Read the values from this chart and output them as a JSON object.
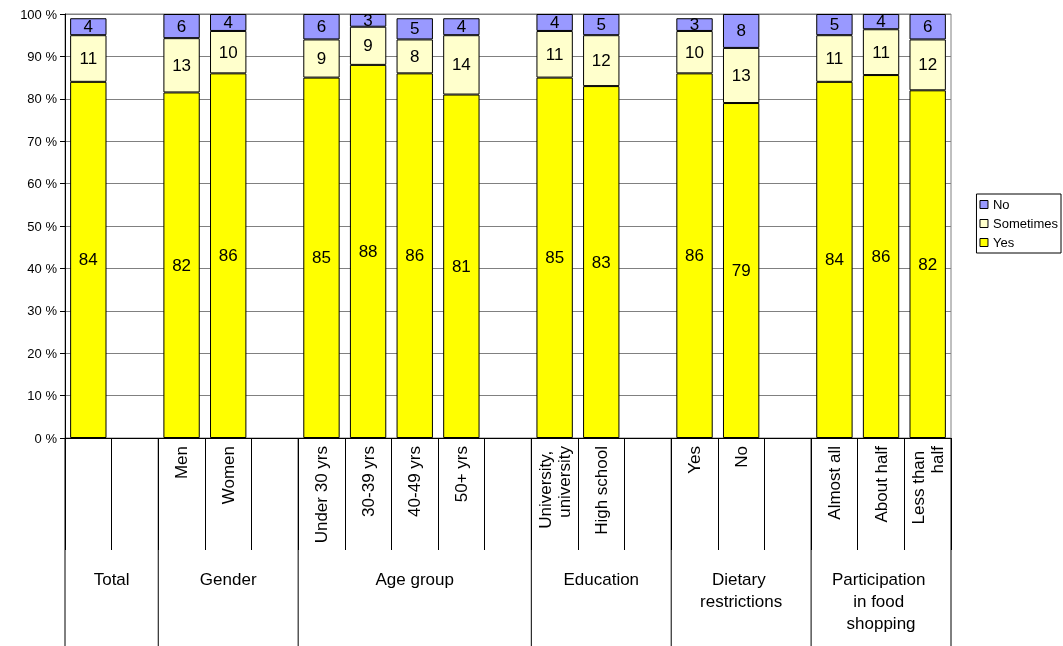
{
  "chart_data": {
    "type": "bar",
    "stacked": true,
    "grid": "y",
    "legend": "right",
    "categories": [
      null,
      null,
      "Men",
      "Women",
      null,
      "Under 30 yrs",
      "30-39 yrs",
      "40-49 yrs",
      "50+ yrs",
      null,
      "University, university",
      "High school",
      null,
      "Yes",
      "No",
      null,
      "Almost all",
      "About half",
      "Less than half"
    ],
    "series": [
      {
        "name": "Yes",
        "color": "#ffff00",
        "values": [
          84,
          null,
          81.5,
          86,
          null,
          85,
          88,
          86,
          81,
          null,
          85,
          83,
          null,
          86,
          79,
          null,
          84,
          85.6,
          82
        ],
        "value_labels": [
          "84",
          null,
          "82",
          "86",
          null,
          "85",
          "88",
          "86",
          "81",
          null,
          "85",
          "83",
          null,
          "86",
          "79",
          null,
          "84",
          "86",
          "82"
        ]
      },
      {
        "name": "Sometimes",
        "color": "#ffffcc",
        "values": [
          11,
          null,
          12.8,
          10,
          null,
          9,
          9,
          8,
          14,
          null,
          11,
          12,
          null,
          10,
          13,
          null,
          11,
          10.8,
          12
        ],
        "value_labels": [
          "11",
          null,
          "13",
          "10",
          null,
          "9",
          "9",
          "8",
          "14",
          null,
          "11",
          "12",
          null,
          "10",
          "13",
          null,
          "11",
          "11",
          "12"
        ]
      },
      {
        "name": "No",
        "color": "#9999ff",
        "values": [
          4,
          null,
          5.7,
          4,
          null,
          6,
          3,
          5,
          4,
          null,
          4,
          5,
          null,
          3,
          8,
          null,
          5,
          3.6,
          6
        ],
        "value_labels": [
          "4",
          null,
          "6",
          "4",
          null,
          "6",
          "3",
          "5",
          "4",
          null,
          "4",
          "5",
          null,
          "3",
          "8",
          null,
          "5",
          "4",
          "6"
        ]
      }
    ],
    "ylim": [
      0,
      100
    ],
    "yticks": [
      {
        "value": 0,
        "label": "0 %"
      },
      {
        "value": 10,
        "label": "10 %"
      },
      {
        "value": 20,
        "label": "20 %"
      },
      {
        "value": 30,
        "label": "30 %"
      },
      {
        "value": 40,
        "label": "40 %"
      },
      {
        "value": 50,
        "label": "50 %"
      },
      {
        "value": 60,
        "label": "60 %"
      },
      {
        "value": 70,
        "label": "70 %"
      },
      {
        "value": 80,
        "label": "80 %"
      },
      {
        "value": 90,
        "label": "90 %"
      },
      {
        "value": 100,
        "label": "100 %"
      }
    ],
    "annotations": [
      "Total",
      "Gender",
      "Age group",
      "Education",
      "Dietary restrictions",
      "Participation in food shopping"
    ]
  }
}
